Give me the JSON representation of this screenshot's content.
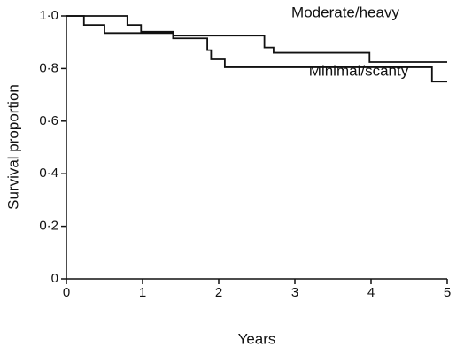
{
  "chart_data": {
    "type": "line",
    "step": "post",
    "xlabel": "Years",
    "ylabel": "Survival proportion",
    "annotations": [
      "Moderate/heavy",
      "Minimal/scanty"
    ],
    "xlim": [
      0,
      5
    ],
    "ylim": [
      0,
      1
    ],
    "xticks": [
      0,
      1,
      2,
      3,
      4,
      5
    ],
    "yticks": [
      0,
      {
        "value": 0.2,
        "label": "0·2"
      },
      {
        "value": 0.4,
        "label": "0·4"
      },
      {
        "value": 0.6,
        "label": "0·6"
      },
      {
        "value": 0.8,
        "label": "0·8"
      },
      {
        "value": 1,
        "label": "1·0"
      }
    ],
    "series": [
      {
        "name": "Moderate/heavy",
        "color": "#111111",
        "x": [
          0,
          0.8,
          0.98,
          1.4,
          2.6,
          2.72,
          3.98,
          5
        ],
        "values": [
          1,
          0.966,
          0.94,
          0.925,
          0.88,
          0.86,
          0.825,
          0.825
        ]
      },
      {
        "name": "Minimal/scanty",
        "color": "#111111",
        "x": [
          0,
          0.23,
          0.5,
          1.4,
          1.85,
          1.9,
          2.08,
          4.8,
          5
        ],
        "values": [
          1,
          0.966,
          0.935,
          0.915,
          0.87,
          0.835,
          0.805,
          0.75,
          0.75
        ]
      }
    ]
  }
}
